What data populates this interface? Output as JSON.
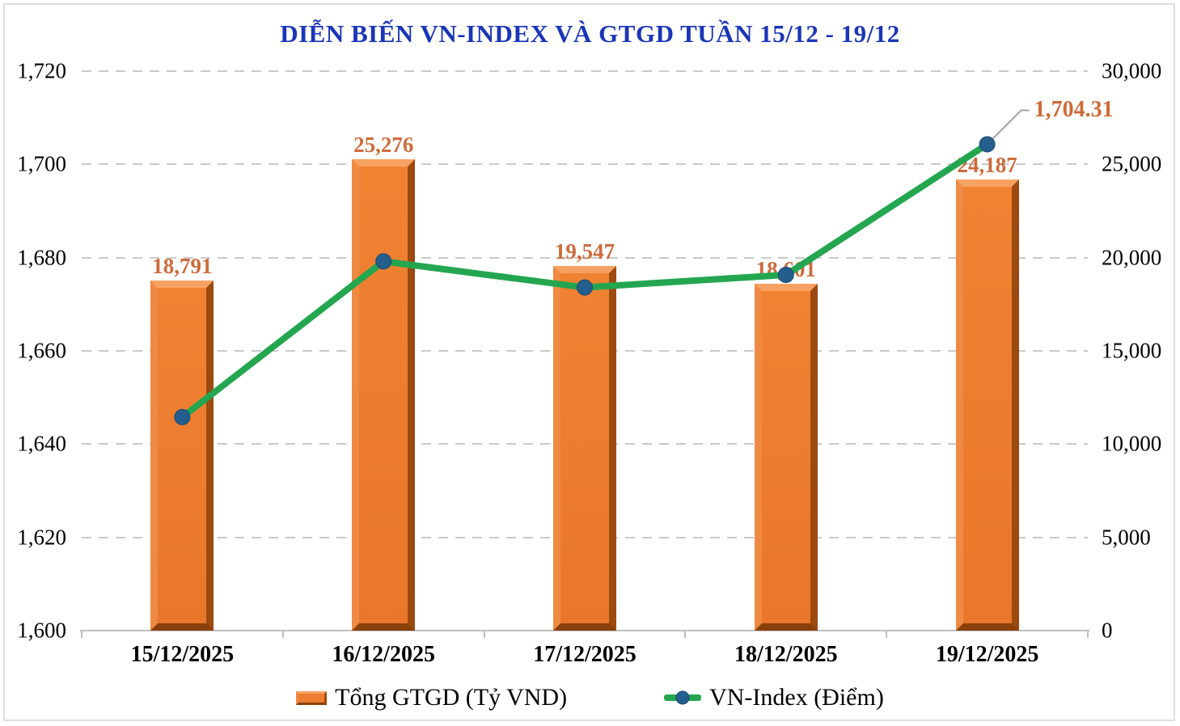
{
  "chart_data": {
    "type": "combo",
    "title": "DIỄN BIẾN VN-INDEX VÀ GTGD TUẦN 15/12 - 19/12",
    "categories": [
      "15/12/2025",
      "16/12/2025",
      "17/12/2025",
      "18/12/2025",
      "19/12/2025"
    ],
    "series": [
      {
        "name": "Tổng GTGD (Tỷ VND)",
        "type": "bar",
        "axis": "right",
        "values": [
          18791,
          25276,
          19547,
          18601,
          24187
        ],
        "labels": [
          "18,791",
          "25,276",
          "19,547",
          "18,601",
          "24,187"
        ]
      },
      {
        "name": "VN-Index (Điểm)",
        "type": "line",
        "axis": "left",
        "values": [
          1645.8,
          1679.2,
          1673.6,
          1676.3,
          1704.31
        ],
        "last_label": "1,704.31"
      }
    ],
    "left_axis": {
      "min": 1600,
      "max": 1720,
      "step": 20,
      "tick_labels": [
        "1,720",
        "1,700",
        "1,680",
        "1,660",
        "1,640",
        "1,620",
        "1,600"
      ]
    },
    "right_axis": {
      "min": 0,
      "max": 30000,
      "step": 5000,
      "tick_labels": [
        "30,000",
        "25,000",
        "20,000",
        "15,000",
        "10,000",
        "5,000",
        "0"
      ]
    },
    "grid": "dashed-horizontal",
    "legend_position": "bottom",
    "colors": {
      "title": "#1A35B8",
      "bar_fill": "#ED7D31",
      "bar_bevel_light": "#F7A263",
      "bar_bevel_dark": "#8A4009",
      "bar_label": "#CE6B3C",
      "line": "#23A64F",
      "marker": "#235E8C",
      "leader_line": "#A0A0A0",
      "gridline": "#C9C9C9",
      "axis_line": "#BFBFBF",
      "axis_text": "#000000"
    }
  }
}
